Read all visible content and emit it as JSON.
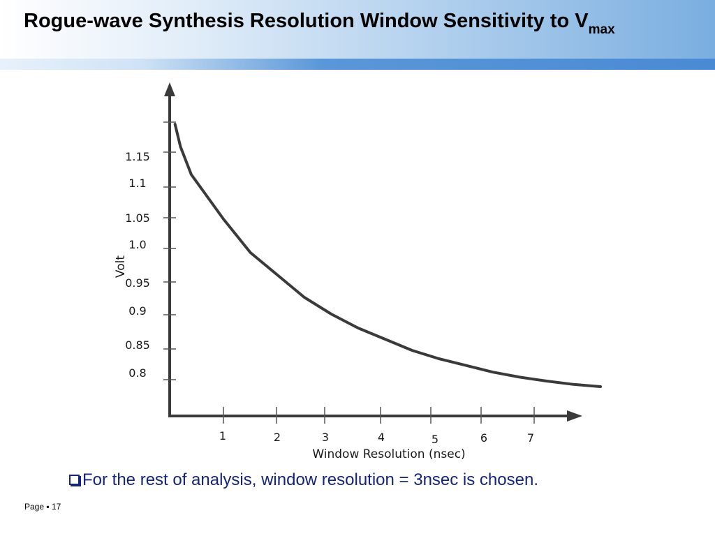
{
  "slide": {
    "title_main": "Rogue-wave Synthesis Resolution Window Sensitivity to V",
    "title_sub": "max",
    "bullet_text": "For the rest of analysis, window resolution = 3nsec is chosen.",
    "footer_label": "Page",
    "footer_sep": "▪",
    "page_number": "17"
  },
  "chart_data": {
    "type": "line",
    "xlabel": "Window Resolution (nsec)",
    "ylabel": "Volt",
    "x_ticks": [
      "1",
      "2",
      "3",
      "4",
      "5",
      "6",
      "7"
    ],
    "y_ticks": [
      "0.8",
      "0.85",
      "0.9",
      "0.95",
      "1.0",
      "1.05",
      "1.1",
      "1.15"
    ],
    "xlim": [
      0,
      8
    ],
    "ylim": [
      0.75,
      1.25
    ],
    "series": [
      {
        "x": [
          0.1,
          0.2,
          0.4,
          0.7,
          1.0,
          1.5,
          2.0,
          2.5,
          3.0,
          3.5,
          4.0,
          4.5,
          5.0,
          5.5,
          6.0,
          6.5,
          7.0,
          7.5,
          8.0
        ],
        "y": [
          1.21,
          1.17,
          1.12,
          1.08,
          1.04,
          0.98,
          0.94,
          0.9,
          0.87,
          0.845,
          0.825,
          0.805,
          0.79,
          0.778,
          0.766,
          0.757,
          0.75,
          0.744,
          0.74
        ]
      }
    ],
    "color": "#3a3a3a"
  }
}
